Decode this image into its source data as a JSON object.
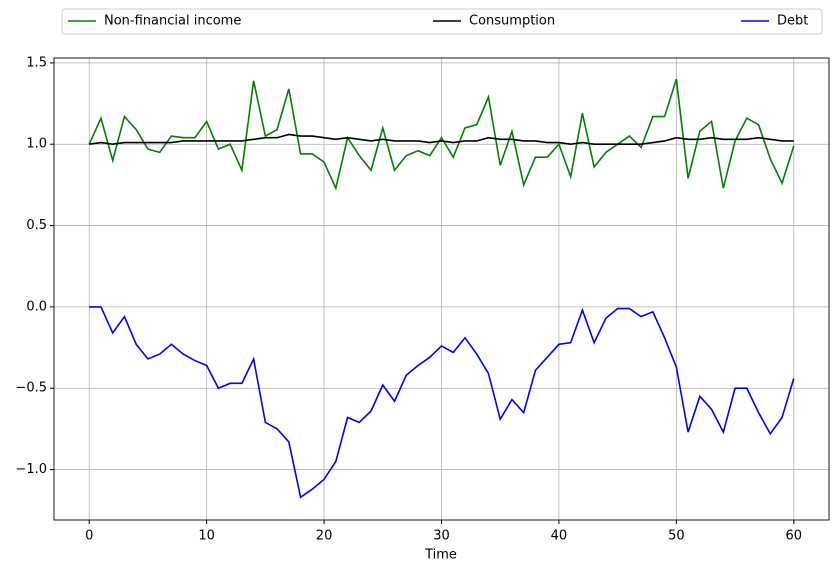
{
  "chart_data": {
    "type": "line",
    "xlabel": "Time",
    "x": [
      0,
      1,
      2,
      3,
      4,
      5,
      6,
      7,
      8,
      9,
      10,
      11,
      12,
      13,
      14,
      15,
      16,
      17,
      18,
      19,
      20,
      21,
      22,
      23,
      24,
      25,
      26,
      27,
      28,
      29,
      30,
      31,
      32,
      33,
      34,
      35,
      36,
      37,
      38,
      39,
      40,
      41,
      42,
      43,
      44,
      45,
      46,
      47,
      48,
      49,
      50,
      51,
      52,
      53,
      54,
      55,
      56,
      57,
      58,
      59,
      60
    ],
    "series": [
      {
        "name": "Non-financial income",
        "color": "#008000",
        "values": [
          1.0,
          1.16,
          0.9,
          1.17,
          1.09,
          0.97,
          0.95,
          1.05,
          1.04,
          1.04,
          1.14,
          0.97,
          1.0,
          0.84,
          1.39,
          1.05,
          1.09,
          1.34,
          0.94,
          0.94,
          0.89,
          0.73,
          1.04,
          0.93,
          0.84,
          1.1,
          0.84,
          0.93,
          0.96,
          0.93,
          1.04,
          0.92,
          1.1,
          1.12,
          1.29,
          0.87,
          1.08,
          0.75,
          0.92,
          0.92,
          1.0,
          0.8,
          1.19,
          0.86,
          0.95,
          1.0,
          1.05,
          0.98,
          1.17,
          1.17,
          1.4,
          0.79,
          1.08,
          1.14,
          0.73,
          1.02,
          1.16,
          1.12,
          0.91,
          0.76,
          0.99
        ]
      },
      {
        "name": "Consumption",
        "color": "#000000",
        "values": [
          1.0,
          1.01,
          1.0,
          1.01,
          1.01,
          1.01,
          1.01,
          1.01,
          1.02,
          1.02,
          1.02,
          1.02,
          1.02,
          1.02,
          1.03,
          1.04,
          1.04,
          1.06,
          1.05,
          1.05,
          1.04,
          1.03,
          1.04,
          1.03,
          1.02,
          1.03,
          1.02,
          1.02,
          1.02,
          1.01,
          1.02,
          1.01,
          1.02,
          1.02,
          1.04,
          1.03,
          1.03,
          1.02,
          1.02,
          1.01,
          1.01,
          1.0,
          1.01,
          1.0,
          1.0,
          1.0,
          1.0,
          1.0,
          1.01,
          1.02,
          1.04,
          1.03,
          1.03,
          1.04,
          1.03,
          1.03,
          1.03,
          1.04,
          1.03,
          1.02,
          1.02
        ]
      },
      {
        "name": "Debt",
        "color": "#0000ff",
        "values": [
          0,
          0,
          -0.16,
          -0.06,
          -0.23,
          -0.32,
          -0.29,
          -0.23,
          -0.29,
          -0.33,
          -0.36,
          -0.5,
          -0.47,
          -0.47,
          -0.32,
          -0.71,
          -0.75,
          -0.83,
          -1.17,
          -1.12,
          -1.06,
          -0.95,
          -0.68,
          -0.71,
          -0.64,
          -0.48,
          -0.58,
          -0.42,
          -0.36,
          -0.31,
          -0.24,
          -0.28,
          -0.19,
          -0.29,
          -0.41,
          -0.69,
          -0.57,
          -0.65,
          -0.39,
          -0.31,
          -0.23,
          -0.22,
          -0.02,
          -0.22,
          -0.07,
          -0.01,
          -0.01,
          -0.06,
          -0.03,
          -0.19,
          -0.37,
          -0.77,
          -0.55,
          -0.63,
          -0.77,
          -0.5,
          -0.5,
          -0.65,
          -0.78,
          -0.68,
          -0.44
        ]
      }
    ],
    "xlim": [
      -3,
      63
    ],
    "xticks": [
      0,
      10,
      20,
      30,
      40,
      50,
      60
    ],
    "ylim": [
      -1.31,
      1.53
    ],
    "yticks": [
      {
        "value": -1.0,
        "label": "−1.0"
      },
      {
        "value": -0.5,
        "label": "−0.5"
      },
      {
        "value": 0.0,
        "label": "0.0"
      },
      0.5,
      {
        "value": 1.0,
        "label": "1.0"
      },
      1.5
    ],
    "grid": true,
    "legend": "top"
  }
}
